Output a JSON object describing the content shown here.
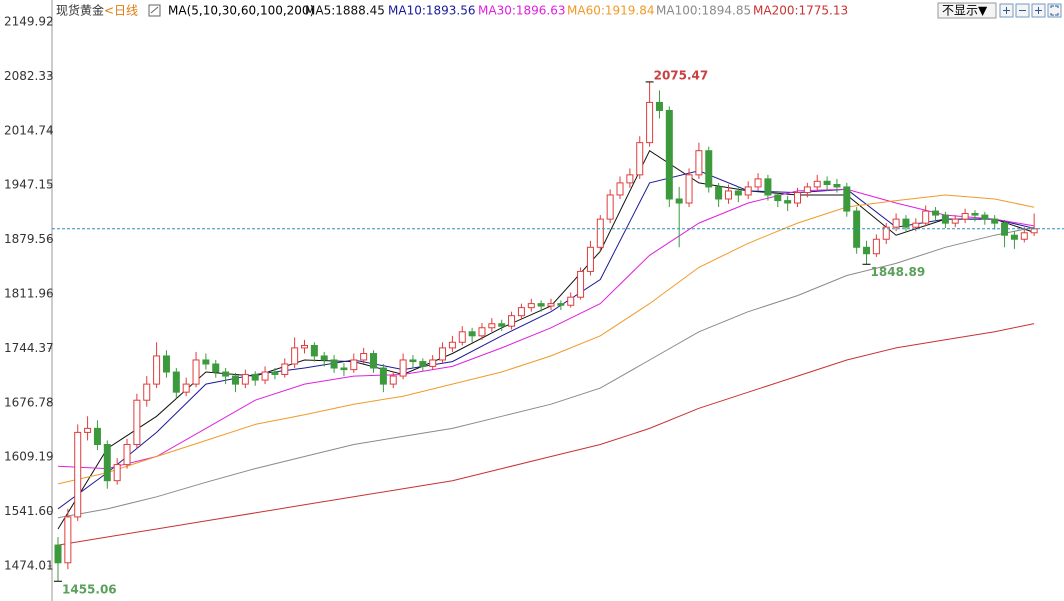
{
  "chart_data": {
    "type": "candlestick",
    "title": "现货黄金",
    "period": "<日线",
    "ma_params": "MA(5,10,30,60,100,200)",
    "toolbar_button": "不显示▼",
    "ylim": [
      1430.52,
      2177.25
    ],
    "yticks": [
      2149.92,
      2082.33,
      2014.74,
      1947.15,
      1879.56,
      1811.96,
      1744.37,
      1676.78,
      1609.19,
      {
        "value": 1541.6,
        "label": "1541.60"
      },
      1474.01
    ],
    "up_color": "#e03c3c",
    "down_color": "#3c9a3c",
    "last_price_color": "#2f8fb5",
    "candles": {
      "open": [
        1500,
        1478,
        1535,
        1640,
        1645,
        1625,
        1580,
        1600,
        1625,
        1680,
        1700,
        1735,
        1715,
        1690,
        1700,
        1730,
        1725,
        1715,
        1710,
        1700,
        1712,
        1705,
        1715,
        1712,
        1725,
        1745,
        1748,
        1735,
        1730,
        1720,
        1718,
        1730,
        1738,
        1720,
        1700,
        1710,
        1730,
        1728,
        1722,
        1730,
        1745,
        1752,
        1765,
        1760,
        1770,
        1775,
        1772,
        1785,
        1795,
        1800,
        1797,
        1800,
        1798,
        1808,
        1840,
        1870,
        1905,
        1935,
        1950,
        1960,
        2000,
        2050,
        2040,
        1930,
        1925,
        1960,
        1990,
        1945,
        1930,
        1940,
        1935,
        1945,
        1955,
        1935,
        1928,
        1925,
        1938,
        1945,
        1952,
        1948,
        1945,
        1915,
        1870,
        1862,
        1880,
        1895,
        1905,
        1895,
        1900,
        1915,
        1910,
        1900,
        1905,
        1912,
        1910,
        1905,
        1900,
        1885,
        1880,
        1888
      ],
      "high": [
        1510,
        1545,
        1650,
        1660,
        1655,
        1630,
        1608,
        1632,
        1688,
        1710,
        1752,
        1742,
        1720,
        1708,
        1740,
        1738,
        1730,
        1720,
        1714,
        1718,
        1716,
        1722,
        1720,
        1732,
        1758,
        1755,
        1752,
        1740,
        1736,
        1726,
        1738,
        1745,
        1742,
        1725,
        1716,
        1738,
        1736,
        1732,
        1736,
        1752,
        1760,
        1772,
        1770,
        1776,
        1782,
        1780,
        1790,
        1800,
        1806,
        1804,
        1806,
        1804,
        1814,
        1845,
        1878,
        1910,
        1942,
        1958,
        1968,
        2008,
        2075.47,
        2065,
        2045,
        1945,
        1968,
        2000,
        1995,
        1950,
        1948,
        1946,
        1952,
        1962,
        1960,
        1940,
        1934,
        1944,
        1950,
        1960,
        1958,
        1955,
        1950,
        1920,
        1878,
        1886,
        1900,
        1912,
        1910,
        1906,
        1922,
        1920,
        1914,
        1910,
        1918,
        1916,
        1914,
        1910,
        1904,
        1890,
        1895,
        1912
      ],
      "low": [
        1455.06,
        1470,
        1530,
        1630,
        1618,
        1570,
        1575,
        1595,
        1620,
        1672,
        1695,
        1708,
        1682,
        1685,
        1696,
        1718,
        1708,
        1700,
        1690,
        1695,
        1698,
        1700,
        1706,
        1708,
        1720,
        1738,
        1728,
        1722,
        1714,
        1710,
        1714,
        1725,
        1714,
        1690,
        1695,
        1706,
        1720,
        1716,
        1718,
        1726,
        1740,
        1748,
        1752,
        1755,
        1765,
        1766,
        1768,
        1780,
        1790,
        1790,
        1792,
        1792,
        1795,
        1805,
        1835,
        1865,
        1900,
        1930,
        1944,
        1955,
        1995,
        2030,
        1920,
        1870,
        1920,
        1955,
        1938,
        1920,
        1924,
        1926,
        1930,
        1940,
        1928,
        1920,
        1915,
        1920,
        1932,
        1940,
        1940,
        1938,
        1908,
        1862,
        1848.89,
        1858,
        1874,
        1890,
        1888,
        1890,
        1896,
        1902,
        1894,
        1895,
        1900,
        1902,
        1898,
        1892,
        1870,
        1868,
        1876,
        1884
      ],
      "close": [
        1478,
        1535,
        1640,
        1645,
        1625,
        1580,
        1600,
        1625,
        1680,
        1700,
        1735,
        1715,
        1690,
        1700,
        1730,
        1725,
        1715,
        1710,
        1700,
        1712,
        1705,
        1715,
        1712,
        1725,
        1745,
        1748,
        1735,
        1730,
        1720,
        1718,
        1730,
        1738,
        1720,
        1700,
        1710,
        1730,
        1728,
        1722,
        1730,
        1745,
        1752,
        1765,
        1760,
        1770,
        1775,
        1772,
        1785,
        1795,
        1800,
        1797,
        1800,
        1798,
        1808,
        1840,
        1870,
        1905,
        1935,
        1950,
        1960,
        2000,
        2050,
        2040,
        1930,
        1925,
        1960,
        1990,
        1945,
        1930,
        1940,
        1935,
        1945,
        1955,
        1935,
        1928,
        1925,
        1938,
        1945,
        1952,
        1948,
        1945,
        1915,
        1870,
        1862,
        1880,
        1895,
        1905,
        1895,
        1900,
        1915,
        1910,
        1900,
        1905,
        1912,
        1910,
        1905,
        1900,
        1885,
        1880,
        1888,
        1893
      ]
    },
    "series": [
      {
        "name": "MA5:1888.45",
        "color": "#111111",
        "x": [
          0,
          5,
          10,
          15,
          20,
          25,
          30,
          35,
          40,
          45,
          50,
          55,
          60,
          65,
          70,
          75,
          80,
          85,
          90,
          95,
          99
        ],
        "values": [
          1520,
          1620,
          1660,
          1715,
          1710,
          1730,
          1728,
          1712,
          1738,
          1770,
          1797,
          1865,
          1990,
          1950,
          1940,
          1935,
          1935,
          1885,
          1905,
          1905,
          1888.45
        ]
      },
      {
        "name": "MA10:1893.56",
        "color": "#1a1a9a",
        "x": [
          0,
          5,
          10,
          15,
          20,
          25,
          30,
          35,
          40,
          45,
          50,
          55,
          60,
          65,
          70,
          75,
          80,
          85,
          90,
          95,
          99
        ],
        "values": [
          1545,
          1590,
          1640,
          1700,
          1712,
          1720,
          1730,
          1718,
          1728,
          1760,
          1790,
          1830,
          1950,
          1965,
          1940,
          1938,
          1942,
          1895,
          1905,
          1905,
          1893.56
        ]
      },
      {
        "name": "MA30:1896.63",
        "color": "#e020e0",
        "x": [
          0,
          5,
          10,
          15,
          20,
          25,
          30,
          35,
          40,
          45,
          50,
          55,
          60,
          65,
          70,
          75,
          80,
          85,
          90,
          95,
          99
        ],
        "values": [
          1598,
          1595,
          1610,
          1645,
          1680,
          1700,
          1710,
          1712,
          1722,
          1745,
          1770,
          1800,
          1860,
          1900,
          1925,
          1940,
          1942,
          1925,
          1910,
          1905,
          1896.63
        ]
      },
      {
        "name": "MA60:1919.84",
        "color": "#f09a28",
        "x": [
          0,
          5,
          10,
          15,
          20,
          25,
          30,
          35,
          40,
          45,
          50,
          55,
          60,
          65,
          70,
          75,
          80,
          85,
          90,
          95,
          99
        ],
        "values": [
          1576,
          1590,
          1610,
          1630,
          1650,
          1662,
          1675,
          1685,
          1700,
          1715,
          1735,
          1760,
          1800,
          1845,
          1875,
          1900,
          1920,
          1928,
          1935,
          1930,
          1919.84
        ]
      },
      {
        "name": "MA100:1894.85",
        "color": "#8a8a8a",
        "x": [
          0,
          5,
          10,
          15,
          20,
          25,
          30,
          35,
          40,
          45,
          50,
          55,
          60,
          65,
          70,
          75,
          80,
          85,
          90,
          95,
          99
        ],
        "values": [
          1534,
          1545,
          1560,
          1578,
          1595,
          1610,
          1625,
          1635,
          1645,
          1660,
          1675,
          1695,
          1730,
          1765,
          1790,
          1810,
          1835,
          1850,
          1870,
          1885,
          1894.85
        ]
      },
      {
        "name": "MA200:1775.13",
        "color": "#c83232",
        "x": [
          0,
          5,
          10,
          15,
          20,
          25,
          30,
          35,
          40,
          45,
          50,
          55,
          60,
          65,
          70,
          75,
          80,
          85,
          90,
          95,
          99
        ],
        "values": [
          1500,
          1510,
          1520,
          1530,
          1540,
          1550,
          1560,
          1570,
          1580,
          1595,
          1610,
          1625,
          1645,
          1670,
          1690,
          1710,
          1730,
          1745,
          1755,
          1765,
          1775.13
        ]
      }
    ]
  }
}
